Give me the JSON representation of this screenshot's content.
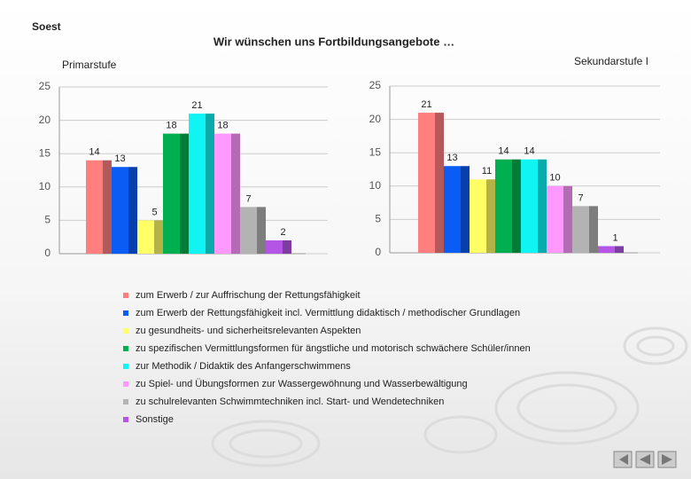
{
  "header": "Soest",
  "title": "Wir wünschen uns Fortbildungsangebote …",
  "legend": [
    {
      "name": "zum Erwerb / zur Auffrischung der Rettungsfähigkeit",
      "color": "#ff7f7f"
    },
    {
      "name": "zum Erwerb der Rettungsfähigkeit incl. Vermittlung didaktisch / methodischer Grundlagen",
      "color": "#0a5cf5"
    },
    {
      "name": "zu gesundheits- und sicherheitsrelevanten Aspekten",
      "color": "#ffff66"
    },
    {
      "name": "zu spezifischen Vermittlungsformen für ängstliche und motorisch schwächere Schüler/innen",
      "color": "#00b050"
    },
    {
      "name": "zur Methodik / Didaktik des Anfangerschwimmens",
      "color": "#11f4f4"
    },
    {
      "name": "zu Spiel- und Übungsformen zur Wassergewöhnung und Wasserbewältigung",
      "color": "#ff99ff"
    },
    {
      "name": "zu schulrelevanten Schwimmtechniken incl. Start- und Wendetechniken",
      "color": "#b3b3b3"
    },
    {
      "name": "Sonstige",
      "color": "#b455e6"
    }
  ],
  "chart_data": [
    {
      "type": "bar",
      "title": "Primarstufe",
      "values": [
        14,
        13,
        5,
        18,
        21,
        18,
        7,
        2
      ],
      "ylim": [
        0,
        25
      ],
      "yticks": [
        0,
        5,
        10,
        15,
        20,
        25
      ]
    },
    {
      "type": "bar",
      "title": "Sekundarstufe I",
      "values": [
        21,
        13,
        11,
        14,
        14,
        10,
        7,
        1
      ],
      "ylim": [
        0,
        25
      ],
      "yticks": [
        0,
        5,
        10,
        15,
        20,
        25
      ]
    }
  ]
}
